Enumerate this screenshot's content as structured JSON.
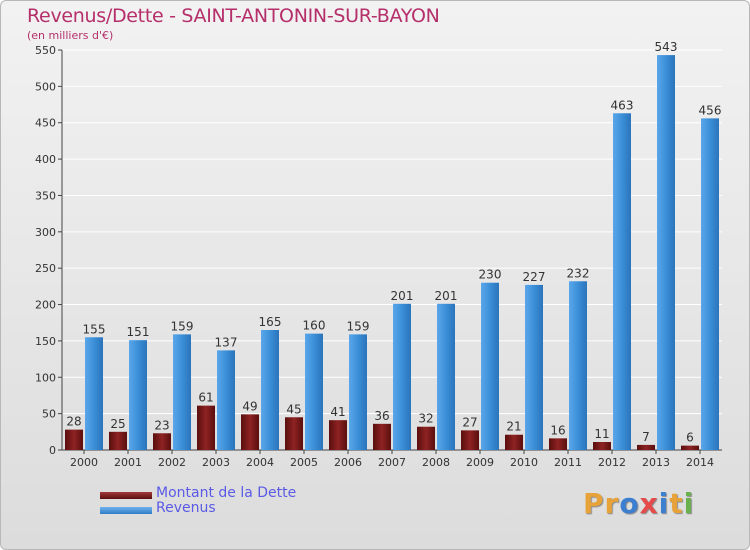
{
  "title": "Revenus/Dette - SAINT-ANTONIN-SUR-BAYON",
  "subtitle": "(en milliers d'€)",
  "logo": {
    "text": "Proxiti",
    "letter_colors": [
      "#e8a23a",
      "#e8a23a",
      "#3c7fd0",
      "#e54b4b",
      "#3c7fd0",
      "#e8a23a",
      "#6ab04c"
    ]
  },
  "colors": {
    "title": "#b52f6b",
    "dette": "#7a1a1a",
    "revenus": "#3b8fd8",
    "axis": "#444444",
    "grid": "#ffffff",
    "legend_text": "#5a5ae6"
  },
  "legend": [
    {
      "label": "Montant de la Dette",
      "color": "#7a1a1a"
    },
    {
      "label": "Revenus",
      "color": "#3b8fd8"
    }
  ],
  "chart_data": {
    "type": "bar",
    "title": "Revenus/Dette - SAINT-ANTONIN-SUR-BAYON",
    "subtitle": "(en milliers d'€)",
    "categories": [
      "2000",
      "2001",
      "2002",
      "2003",
      "2004",
      "2005",
      "2006",
      "2007",
      "2008",
      "2009",
      "2010",
      "2011",
      "2012",
      "2013",
      "2014"
    ],
    "series": [
      {
        "name": "Montant de la Dette",
        "color": "#7a1a1a",
        "values": [
          28,
          25,
          23,
          61,
          49,
          45,
          41,
          36,
          32,
          27,
          21,
          16,
          11,
          7,
          6
        ]
      },
      {
        "name": "Revenus",
        "color": "#3b8fd8",
        "values": [
          155,
          151,
          159,
          137,
          165,
          160,
          159,
          201,
          201,
          230,
          227,
          232,
          463,
          543,
          456
        ]
      }
    ],
    "y_ticks": [
      0,
      50,
      100,
      150,
      200,
      250,
      300,
      350,
      400,
      450,
      500,
      550
    ],
    "ylim": [
      0,
      550
    ],
    "grid": true,
    "legend_position": "bottom-left"
  }
}
